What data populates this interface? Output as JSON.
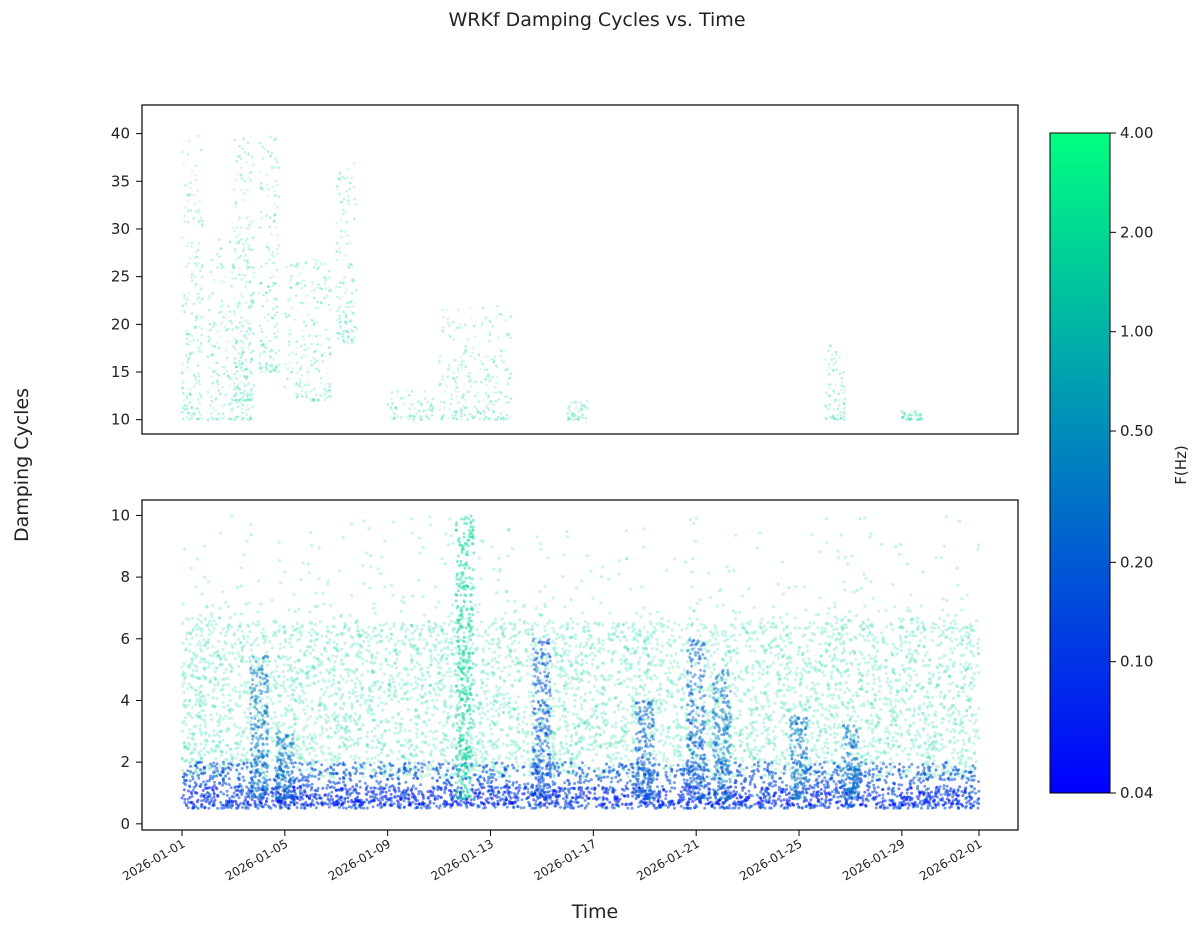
{
  "chart_data": {
    "type": "scatter",
    "title": "WRKf Damping Cycles vs. Time",
    "xlabel": "Time",
    "ylabel": "Damping Cycles",
    "x_range": [
      "2026-01-01",
      "2026-02-01"
    ],
    "x_ticks": [
      "2026-01-01",
      "2026-01-05",
      "2026-01-09",
      "2026-01-13",
      "2026-01-17",
      "2026-01-21",
      "2026-01-25",
      "2026-01-29",
      "2026-02-01"
    ],
    "panels": [
      {
        "name": "upper",
        "ylim": [
          8.5,
          43
        ],
        "y_ticks": [
          "10",
          "15",
          "20",
          "25",
          "30",
          "35",
          "40"
        ],
        "clusters": [
          {
            "start": "2026-01-01",
            "end": "2026-01-01",
            "ymin": 10,
            "ymax": 40,
            "freq_hz": 1.8
          },
          {
            "start": "2026-01-02",
            "end": "2026-01-03",
            "ymin": 10,
            "ymax": 29,
            "freq_hz": 1.8
          },
          {
            "start": "2026-01-03",
            "end": "2026-01-03",
            "ymin": 12,
            "ymax": 40,
            "freq_hz": 1.8
          },
          {
            "start": "2026-01-04",
            "end": "2026-01-04",
            "ymin": 15,
            "ymax": 40,
            "freq_hz": 1.8
          },
          {
            "start": "2026-01-05",
            "end": "2026-01-06",
            "ymin": 12,
            "ymax": 27,
            "freq_hz": 1.8
          },
          {
            "start": "2026-01-07",
            "end": "2026-01-07",
            "ymin": 18,
            "ymax": 37,
            "freq_hz": 1.8
          },
          {
            "start": "2026-01-09",
            "end": "2026-01-10",
            "ymin": 10,
            "ymax": 13,
            "freq_hz": 1.8
          },
          {
            "start": "2026-01-11",
            "end": "2026-01-13",
            "ymin": 10,
            "ymax": 22,
            "freq_hz": 1.8
          },
          {
            "start": "2026-01-16",
            "end": "2026-01-16",
            "ymin": 10,
            "ymax": 12,
            "freq_hz": 1.8
          },
          {
            "start": "2026-01-26",
            "end": "2026-01-26",
            "ymin": 10,
            "ymax": 18,
            "freq_hz": 1.8
          },
          {
            "start": "2026-01-29",
            "end": "2026-01-29",
            "ymin": 10,
            "ymax": 11,
            "freq_hz": 1.8
          }
        ]
      },
      {
        "name": "lower",
        "ylim": [
          -0.2,
          10.5
        ],
        "y_ticks": [
          "0",
          "2",
          "4",
          "6",
          "8",
          "10"
        ],
        "bands": [
          {
            "name": "high-frequency",
            "ymin": 1.5,
            "ymax": 6.5,
            "max_outlier": 10,
            "freq_hz": 1.8
          },
          {
            "name": "low-frequency",
            "ymin": 0.5,
            "ymax": 2.0,
            "freq_hz": 0.15
          },
          {
            "name": "lowest-frequency",
            "ymin": 0.6,
            "ymax": 1.2,
            "freq_hz": 0.05
          }
        ],
        "spikes": [
          {
            "date": "2026-01-04",
            "ymax": 5.5,
            "freq_hz": 0.3
          },
          {
            "date": "2026-01-05",
            "ymax": 3,
            "freq_hz": 0.3
          },
          {
            "date": "2026-01-12",
            "ymax": 10,
            "freq_hz": 1.8
          },
          {
            "date": "2026-01-15",
            "ymax": 6,
            "freq_hz": 0.15
          },
          {
            "date": "2026-01-19",
            "ymax": 4,
            "freq_hz": 0.2
          },
          {
            "date": "2026-01-21",
            "ymax": 6,
            "freq_hz": 0.2
          },
          {
            "date": "2026-01-22",
            "ymax": 5,
            "freq_hz": 0.3
          },
          {
            "date": "2026-01-25",
            "ymax": 3.5,
            "freq_hz": 0.3
          },
          {
            "date": "2026-01-27",
            "ymax": 3.2,
            "freq_hz": 0.3
          }
        ]
      }
    ],
    "colorbar": {
      "label": "F(Hz)",
      "scale": "log",
      "range": [
        0.04,
        4.0
      ],
      "ticks": [
        "4.00",
        "2.00",
        "1.00",
        "0.50",
        "0.20",
        "0.10",
        "0.04"
      ],
      "colormap": [
        "#0000ff",
        "#00ff80"
      ]
    }
  }
}
